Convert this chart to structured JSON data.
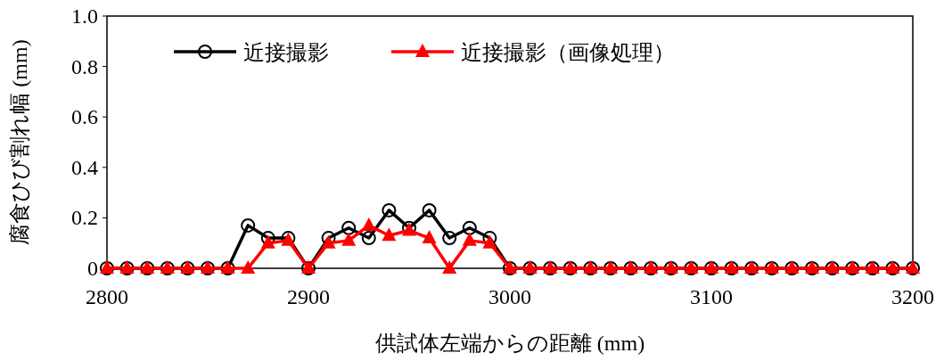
{
  "chart_data": {
    "type": "line",
    "xlabel": "供試体左端からの距離 (mm)",
    "ylabel": "腐食ひび割れ幅 (mm)",
    "x": [
      2800,
      2810,
      2820,
      2830,
      2840,
      2850,
      2860,
      2870,
      2880,
      2890,
      2900,
      2910,
      2920,
      2930,
      2940,
      2950,
      2960,
      2970,
      2980,
      2990,
      3000,
      3010,
      3020,
      3030,
      3040,
      3050,
      3060,
      3070,
      3080,
      3090,
      3100,
      3110,
      3120,
      3130,
      3140,
      3150,
      3160,
      3170,
      3180,
      3190,
      3200
    ],
    "series": [
      {
        "name": "近接撮影",
        "color": "#000000",
        "marker": "circle",
        "values": [
          0,
          0,
          0,
          0,
          0,
          0,
          0,
          0.17,
          0.12,
          0.12,
          0,
          0.12,
          0.16,
          0.12,
          0.23,
          0.16,
          0.23,
          0.12,
          0.16,
          0.12,
          0,
          0,
          0,
          0,
          0,
          0,
          0,
          0,
          0,
          0,
          0,
          0,
          0,
          0,
          0,
          0,
          0,
          0,
          0,
          0,
          0
        ]
      },
      {
        "name": "近接撮影（画像処理）",
        "color": "#ff0000",
        "marker": "triangle",
        "values": [
          0,
          0,
          0,
          0,
          0,
          0,
          0,
          0,
          0.1,
          0.11,
          0,
          0.1,
          0.11,
          0.17,
          0.13,
          0.15,
          0.12,
          0,
          0.11,
          0.1,
          0,
          0,
          0,
          0,
          0,
          0,
          0,
          0,
          0,
          0,
          0,
          0,
          0,
          0,
          0,
          0,
          0,
          0,
          0,
          0,
          0
        ]
      }
    ],
    "xlim": [
      2800,
      3200
    ],
    "xticks": [
      2800,
      2900,
      3000,
      3100,
      3200
    ],
    "ylim": [
      0,
      1.0
    ],
    "yticks": [
      0,
      0.2,
      0.4,
      0.6,
      0.8,
      {
        "value": 1.0,
        "label": "1.0"
      }
    ],
    "grid": false,
    "legend": "top",
    "line_style": "solid"
  }
}
